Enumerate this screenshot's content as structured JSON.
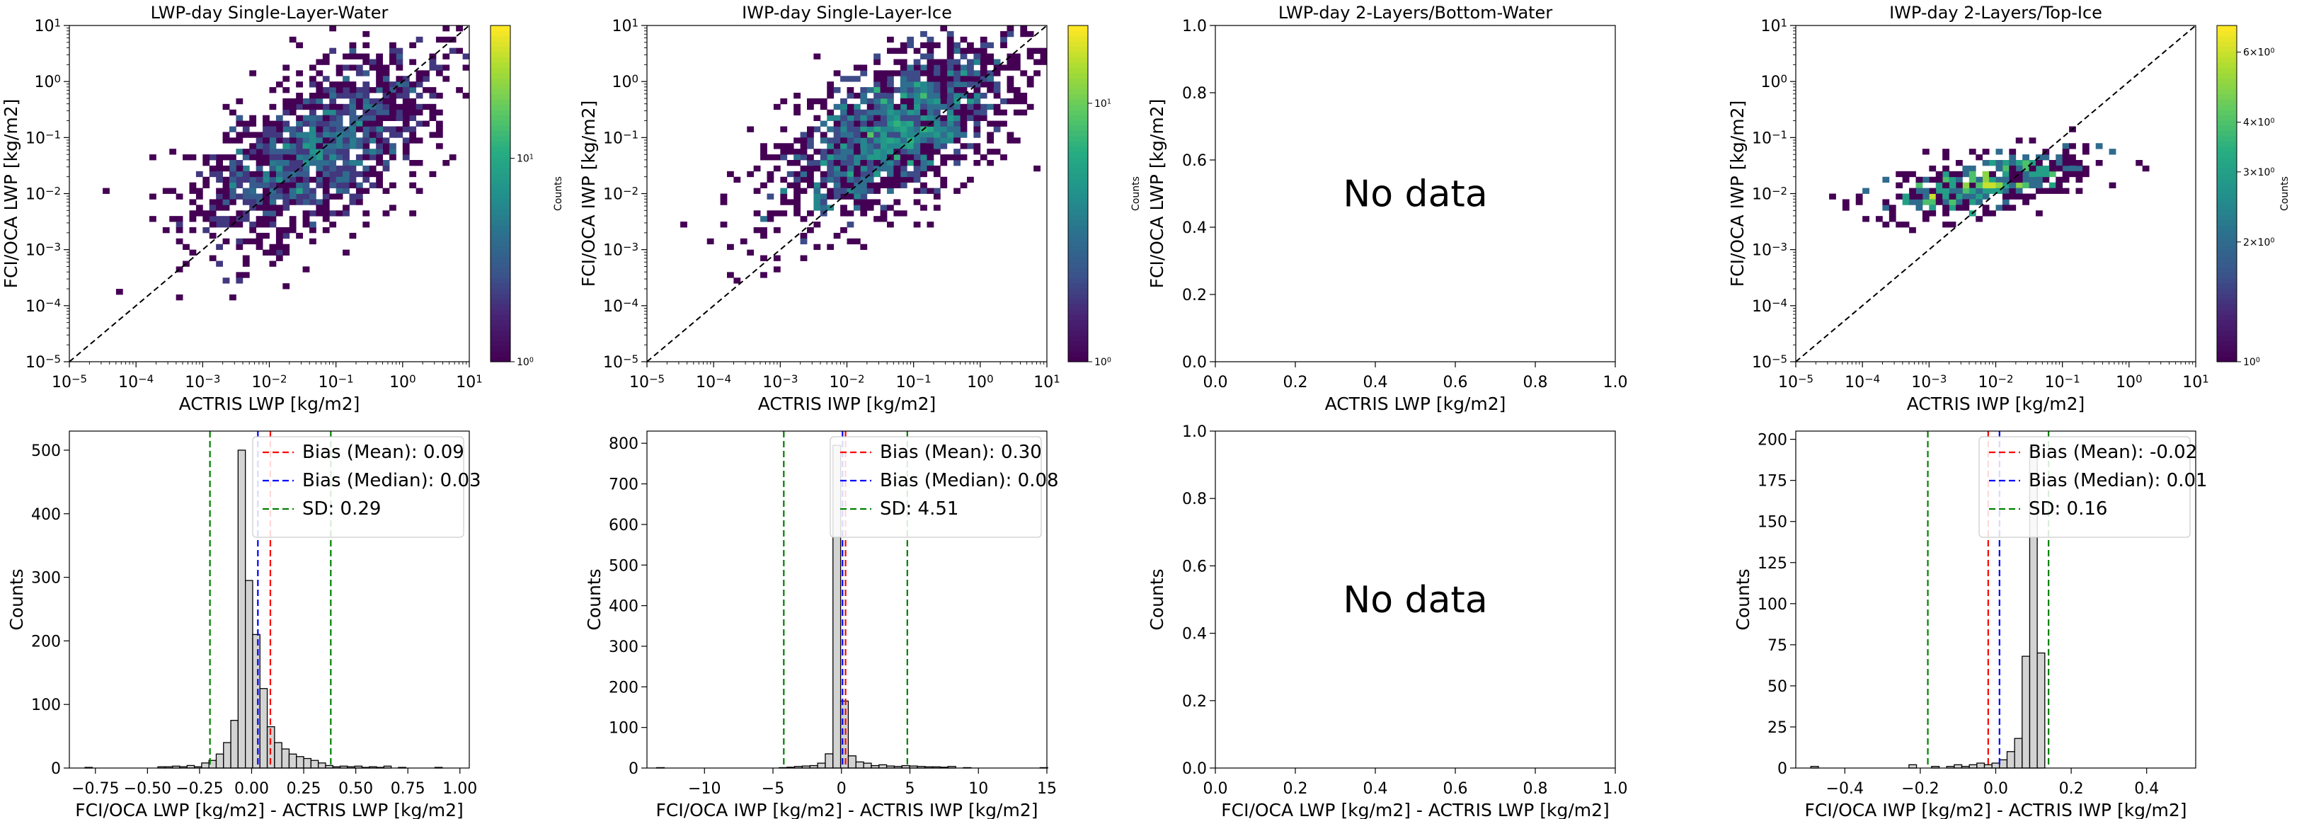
{
  "chart_data": [
    {
      "id": "p1",
      "type": "heatmap",
      "title": "LWP-day Single-Layer-Water",
      "xlabel": "ACTRIS LWP [kg/m2]",
      "ylabel": "FCI/OCA LWP [kg/m2]",
      "xscale": "log",
      "yscale": "log",
      "xlim": [
        1e-05,
        10
      ],
      "ylim": [
        1e-05,
        10
      ],
      "xticks": [
        "10^-5",
        "10^-4",
        "10^-3",
        "10^-2",
        "10^-1",
        "10^0",
        "10^1"
      ],
      "yticks": [
        "10^-5",
        "10^-4",
        "10^-3",
        "10^-2",
        "10^-1",
        "10^0",
        "10^1"
      ],
      "identity_line": true,
      "colorbar": {
        "label": "Counts",
        "scale": "log",
        "range": [
          1,
          45
        ],
        "ticks": [
          "10^0",
          "10^1"
        ]
      },
      "density_center": [
        -1.3,
        -1.2
      ],
      "spread": [
        0.9,
        0.85
      ],
      "n_points": 1400,
      "seed": 11
    },
    {
      "id": "p2",
      "type": "heatmap",
      "title": "IWP-day Single-Layer-Ice",
      "xlabel": "ACTRIS IWP [kg/m2]",
      "ylabel": "FCI/OCA IWP [kg/m2]",
      "xscale": "log",
      "yscale": "log",
      "xlim": [
        1e-05,
        10
      ],
      "ylim": [
        1e-05,
        10
      ],
      "xticks": [
        "10^-5",
        "10^-4",
        "10^-3",
        "10^-2",
        "10^-1",
        "10^0",
        "10^1"
      ],
      "yticks": [
        "10^-5",
        "10^-4",
        "10^-3",
        "10^-2",
        "10^-1",
        "10^0",
        "10^1"
      ],
      "identity_line": true,
      "colorbar": {
        "label": "Counts",
        "scale": "log",
        "range": [
          1,
          20
        ],
        "ticks": [
          "10^0",
          "10^1"
        ]
      },
      "density_center": [
        -1.3,
        -0.9
      ],
      "spread": [
        0.9,
        0.8
      ],
      "n_points": 1500,
      "seed": 23
    },
    {
      "id": "p3",
      "type": "empty",
      "title": "LWP-day 2-Layers/Bottom-Water",
      "xlabel": "ACTRIS LWP [kg/m2]",
      "ylabel": "FCI/OCA LWP [kg/m2]",
      "xlim": [
        0,
        1
      ],
      "ylim": [
        0,
        1
      ],
      "xticks": [
        "0.0",
        "0.2",
        "0.4",
        "0.6",
        "0.8",
        "1.0"
      ],
      "yticks": [
        "0.0",
        "0.2",
        "0.4",
        "0.6",
        "0.8",
        "1.0"
      ],
      "annotation": "No data"
    },
    {
      "id": "p4",
      "type": "heatmap",
      "title": "IWP-day 2-Layers/Top-Ice",
      "xlabel": "ACTRIS IWP [kg/m2]",
      "ylabel": "FCI/OCA IWP [kg/m2]",
      "xscale": "log",
      "yscale": "log",
      "xlim": [
        1e-05,
        10
      ],
      "ylim": [
        1e-05,
        10
      ],
      "xticks": [
        "10^-5",
        "10^-4",
        "10^-3",
        "10^-2",
        "10^-1",
        "10^0",
        "10^1"
      ],
      "yticks": [
        "10^-5",
        "10^-4",
        "10^-3",
        "10^-2",
        "10^-1",
        "10^0",
        "10^1"
      ],
      "identity_line": true,
      "colorbar": {
        "label": "Counts",
        "scale": "log",
        "range": [
          1,
          7
        ],
        "ticks": [
          "10^0",
          "2×10^0",
          "3×10^0",
          "4×10^0",
          "6×10^0"
        ]
      },
      "density_center": [
        -2.1,
        -1.8
      ],
      "spread": [
        0.8,
        0.3
      ],
      "n_points": 420,
      "seed": 37
    },
    {
      "id": "p5",
      "type": "bar",
      "xlabel": "FCI/OCA LWP [kg/m2] - ACTRIS LWP [kg/m2]",
      "ylabel": "Counts",
      "xlim": [
        -0.875,
        1.045
      ],
      "ylim": [
        0,
        530
      ],
      "xticks": [
        -0.75,
        -0.5,
        -0.25,
        0.0,
        0.25,
        0.5,
        0.75,
        1.0
      ],
      "xtick_labels": [
        "−0.75",
        "−0.50",
        "−0.25",
        "0.00",
        "0.25",
        "0.50",
        "0.75",
        "1.00"
      ],
      "yticks": [
        0,
        100,
        200,
        300,
        400,
        500
      ],
      "bin_start": -0.8,
      "bin_width": 0.035,
      "values": [
        1,
        0,
        0,
        0,
        0,
        0,
        0,
        0,
        0,
        0,
        2,
        2,
        3,
        2,
        4,
        2,
        8,
        12,
        22,
        40,
        75,
        500,
        295,
        210,
        125,
        65,
        40,
        30,
        22,
        18,
        15,
        12,
        8,
        4,
        2,
        3,
        2,
        3,
        1,
        2,
        1,
        3,
        0,
        1,
        0,
        0,
        0,
        0,
        1
      ],
      "lines": [
        {
          "name": "Bias (Mean): 0.09",
          "x": 0.09,
          "color": "#ff0000"
        },
        {
          "name": "Bias (Median): 0.03",
          "x": 0.03,
          "color": "#0000ff"
        },
        {
          "name": "SD: 0.29",
          "x": -0.2,
          "color": "#008000"
        },
        {
          "name": "",
          "x": 0.38,
          "color": "#008000"
        }
      ],
      "legend_position": "top-right"
    },
    {
      "id": "p6",
      "type": "bar",
      "xlabel": "FCI/OCA IWP [kg/m2] - ACTRIS IWP [kg/m2]",
      "ylabel": "Counts",
      "xlim": [
        -14.2,
        15.0
      ],
      "ylim": [
        0,
        830
      ],
      "xticks": [
        -10,
        -5,
        0,
        5,
        10,
        15
      ],
      "xtick_labels": [
        "−10",
        "−5",
        "0",
        "5",
        "10",
        "15"
      ],
      "yticks": [
        0,
        100,
        200,
        300,
        400,
        500,
        600,
        700,
        800
      ],
      "bin_start": -13.5,
      "bin_width": 0.56,
      "values": [
        1,
        0,
        0,
        0,
        0,
        0,
        0,
        0,
        0,
        0,
        0,
        0,
        0,
        0,
        0,
        0,
        1,
        2,
        4,
        5,
        6,
        12,
        35,
        795,
        165,
        30,
        15,
        12,
        6,
        8,
        5,
        4,
        6,
        5,
        4,
        3,
        3,
        2,
        4,
        0,
        1,
        0,
        0,
        0,
        0,
        0,
        0,
        0,
        0,
        0,
        1,
        0
      ],
      "lines": [
        {
          "name": "Bias (Mean): 0.30",
          "x": 0.3,
          "color": "#ff0000"
        },
        {
          "name": "Bias (Median): 0.08",
          "x": 0.08,
          "color": "#0000ff"
        },
        {
          "name": "SD: 4.51",
          "x": -4.21,
          "color": "#008000"
        },
        {
          "name": "",
          "x": 4.81,
          "color": "#008000"
        }
      ],
      "legend_position": "top-right"
    },
    {
      "id": "p7",
      "type": "empty",
      "xlabel": "FCI/OCA LWP [kg/m2] - ACTRIS LWP [kg/m2]",
      "ylabel": "Counts",
      "xlim": [
        0,
        1
      ],
      "ylim": [
        0,
        1
      ],
      "xticks": [
        "0.0",
        "0.2",
        "0.4",
        "0.6",
        "0.8",
        "1.0"
      ],
      "yticks": [
        "0.0",
        "0.2",
        "0.4",
        "0.6",
        "0.8",
        "1.0"
      ],
      "annotation": "No data"
    },
    {
      "id": "p8",
      "type": "bar",
      "xlabel": "FCI/OCA IWP [kg/m2] - ACTRIS IWP [kg/m2]",
      "ylabel": "Counts",
      "xlim": [
        -0.53,
        0.53
      ],
      "ylim": [
        0,
        205
      ],
      "xticks": [
        -0.4,
        -0.2,
        0.0,
        0.2,
        0.4
      ],
      "xtick_labels": [
        "−0.4",
        "−0.2",
        "0.0",
        "0.2",
        "0.4"
      ],
      "yticks": [
        0,
        25,
        50,
        75,
        100,
        125,
        150,
        175,
        200
      ],
      "bin_start": -0.49,
      "bin_width": 0.02,
      "values": [
        1,
        0,
        0,
        0,
        0,
        0,
        0,
        0,
        0,
        0,
        0,
        0,
        0,
        2,
        0,
        0,
        1,
        0,
        1,
        2,
        1,
        2,
        3,
        2,
        3,
        5,
        10,
        18,
        68,
        195,
        70,
        0,
        0,
        0,
        0,
        0,
        0,
        0,
        0,
        0,
        0,
        0,
        0,
        0,
        0,
        0,
        0,
        0,
        0,
        0
      ],
      "lines": [
        {
          "name": "Bias (Mean): -0.02",
          "x": -0.02,
          "color": "#ff0000"
        },
        {
          "name": "Bias (Median): 0.01",
          "x": 0.01,
          "color": "#0000ff"
        },
        {
          "name": "SD: 0.16",
          "x": -0.18,
          "color": "#008000"
        },
        {
          "name": "",
          "x": 0.14,
          "color": "#008000"
        }
      ],
      "legend_position": "top-right"
    }
  ]
}
